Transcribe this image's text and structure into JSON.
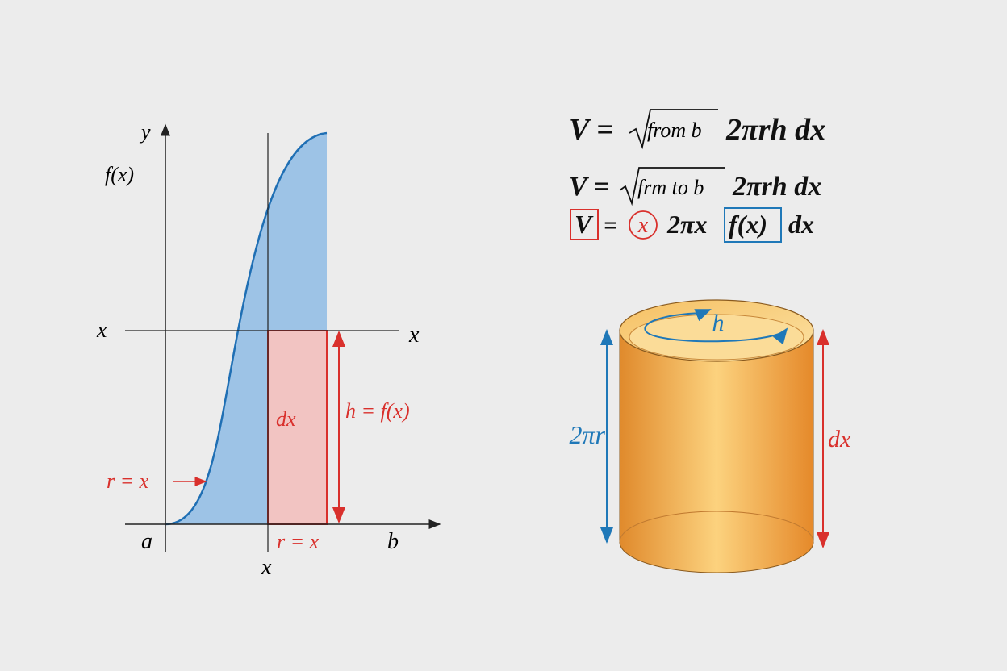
{
  "graph": {
    "y_axis_label": "y",
    "f_label": "f(x)",
    "line_label_left": "x",
    "line_label_right": "x",
    "strip_label": "dx",
    "height_label": "h = f(x)",
    "radius_label": "r = x",
    "a_label": "a",
    "strip_base_label": "r = x",
    "b_label": "b",
    "x_label": "x"
  },
  "equations": [
    {
      "lhs": "V =",
      "integral_text": "from b",
      "integrand": "2πrh dx"
    },
    {
      "lhs": "V =",
      "integral_text": "frm to b",
      "integrand": "2πrh dx"
    },
    {
      "lhs": "V",
      "equals": "=",
      "circled": "x",
      "factor": "2πx",
      "boxed": "f(x)",
      "differential": "dx"
    }
  ],
  "cylinder": {
    "top_label": "h",
    "left_label": "2πr",
    "right_label": "dx"
  }
}
